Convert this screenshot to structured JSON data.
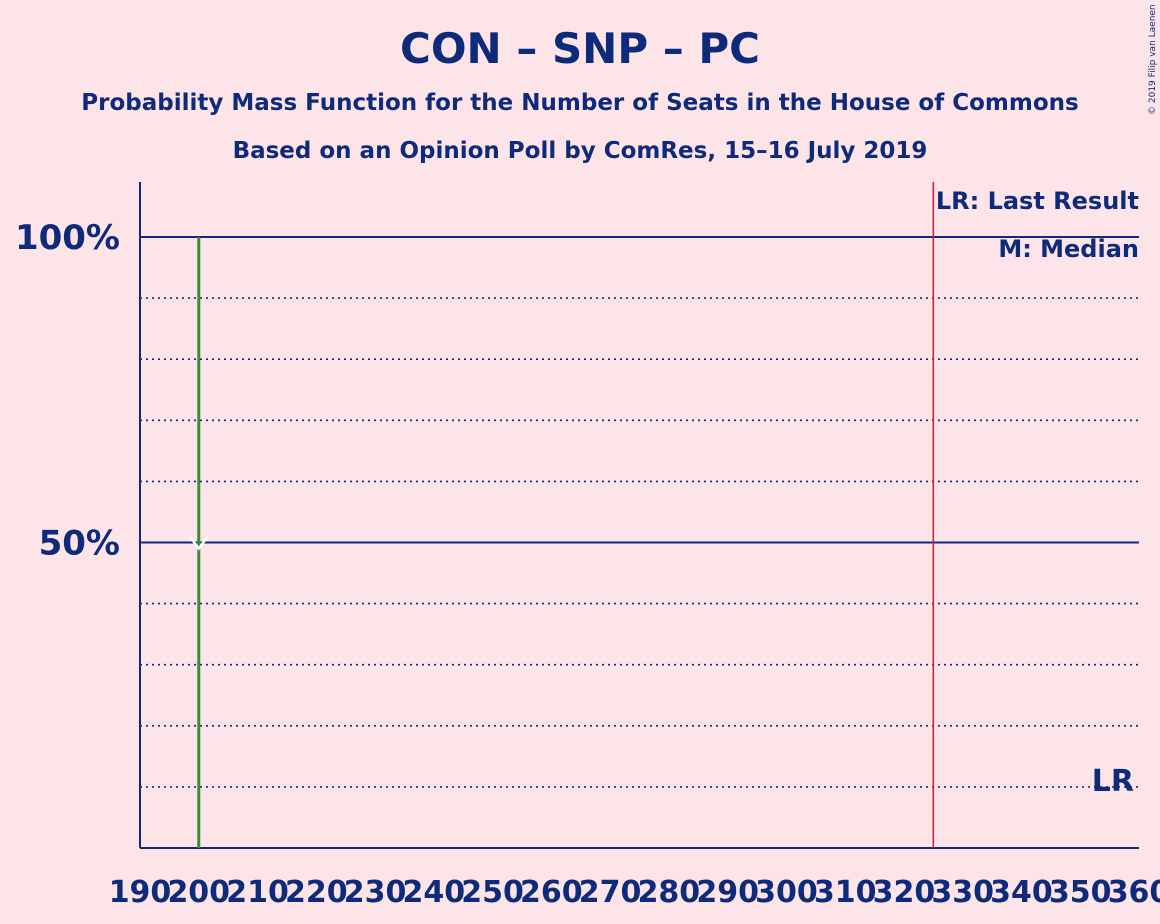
{
  "header": {
    "title": "CON – SNP – PC",
    "subtitle": "Probability Mass Function for the Number of Seats in the House of Commons",
    "source": "Based on an Opinion Poll by ComRes, 15–16 July 2019",
    "copyright": "© 2019 Filip van Laenen"
  },
  "legend": {
    "last_result": "LR: Last Result",
    "median": "M: Median",
    "lr_marker": "LR"
  },
  "colors": {
    "background": "#fde4e8",
    "text": "#0e2a7a",
    "axis": "#0e2a7a",
    "probability_bar": "#3a8a3a",
    "last_result_line": "#cc2233"
  },
  "chart_data": {
    "type": "bar",
    "title": "CON – SNP – PC",
    "xlabel": "",
    "ylabel": "",
    "xlim": [
      190,
      360
    ],
    "ylim": [
      0,
      1.1
    ],
    "x_ticks": [
      190,
      200,
      210,
      220,
      230,
      240,
      250,
      260,
      270,
      280,
      290,
      300,
      310,
      320,
      330,
      340,
      350,
      360
    ],
    "y_ticks": [
      {
        "value": 0.5,
        "label": "50%"
      },
      {
        "value": 1.0,
        "label": "100%"
      }
    ],
    "minor_gridlines": [
      0.1,
      0.2,
      0.3,
      0.4,
      0.6,
      0.7,
      0.8,
      0.9
    ],
    "bars": [
      {
        "x": 200,
        "value": 1.0
      }
    ],
    "median": 200,
    "last_result": 325,
    "grid": true,
    "legend_position": "top-right"
  }
}
